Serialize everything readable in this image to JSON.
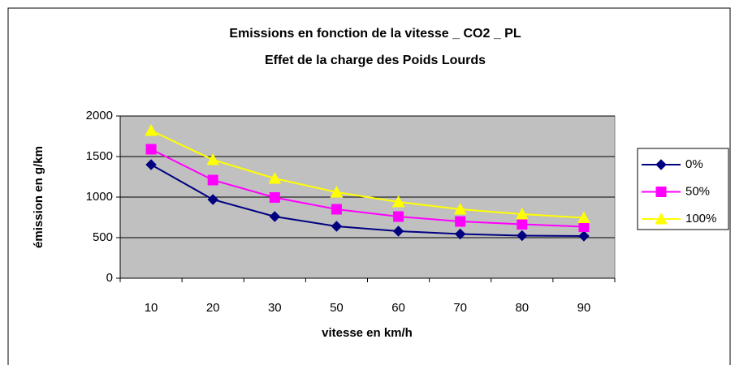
{
  "chart_data": {
    "type": "line",
    "title": "Emissions en fonction de la vitesse _ CO2 _ PL",
    "subtitle": "Effet de la charge des Poids Lourds",
    "x_label": "vitesse en km/h",
    "y_label": "émission en g/km",
    "categories": [
      "10",
      "20",
      "30",
      "50",
      "60",
      "70",
      "80",
      "90"
    ],
    "series": [
      {
        "name": "0%",
        "color": "#000080",
        "marker": "diamond",
        "values": [
          1400,
          970,
          760,
          640,
          580,
          545,
          525,
          520
        ]
      },
      {
        "name": "50%",
        "color": "#ff00ff",
        "marker": "square",
        "values": [
          1590,
          1210,
          995,
          850,
          760,
          700,
          665,
          635
        ]
      },
      {
        "name": "100%",
        "color": "#ffff00",
        "marker": "triangle",
        "values": [
          1820,
          1460,
          1230,
          1060,
          940,
          850,
          790,
          745
        ]
      }
    ],
    "ylim": [
      0,
      2000
    ],
    "yticks": [
      0,
      500,
      1000,
      1500,
      2000
    ],
    "grid": true,
    "legend": "right"
  }
}
